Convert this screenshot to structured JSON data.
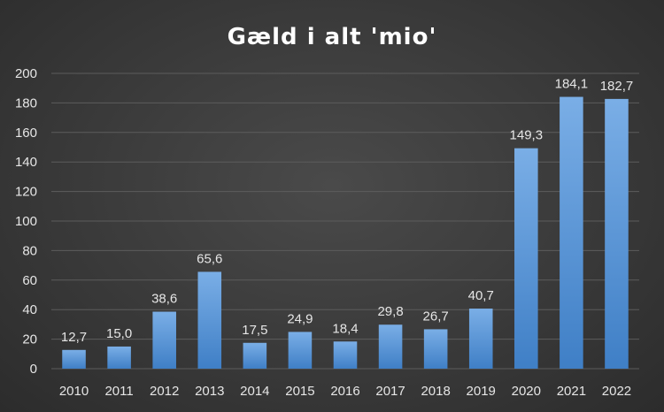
{
  "chart_data": {
    "type": "bar",
    "title": "Gæld i alt 'mio'",
    "xlabel": "",
    "ylabel": "",
    "categories": [
      "2010",
      "2011",
      "2012",
      "2013",
      "2014",
      "2015",
      "2016",
      "2017",
      "2018",
      "2019",
      "2020",
      "2021",
      "2022"
    ],
    "values": [
      12.7,
      15.0,
      38.6,
      65.6,
      17.5,
      24.9,
      18.4,
      29.8,
      26.7,
      40.7,
      149.3,
      184.1,
      182.7
    ],
    "data_labels": [
      "12,7",
      "15,0",
      "38,6",
      "65,6",
      "17,5",
      "24,9",
      "18,4",
      "29,8",
      "26,7",
      "40,7",
      "149,3",
      "184,1",
      "182,7"
    ],
    "ylim": [
      0,
      200
    ],
    "yticks": [
      "0",
      "20",
      "40",
      "60",
      "80",
      "100",
      "120",
      "140",
      "160",
      "180",
      "200"
    ],
    "grid": true,
    "legend": "none",
    "colors": {
      "bar_top": "#7aaee6",
      "bar_bottom": "#3f7fc6",
      "background": "#383838"
    }
  }
}
